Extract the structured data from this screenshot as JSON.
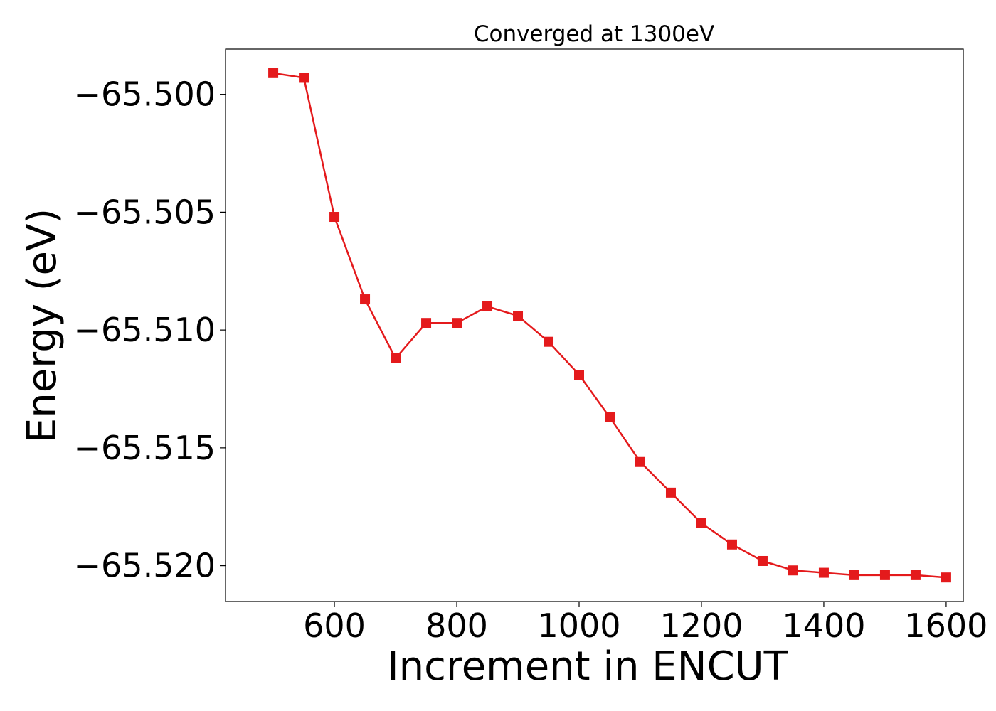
{
  "chart_data": {
    "type": "line",
    "title": "Converged at 1300eV",
    "xlabel": "Increment in ENCUT",
    "ylabel": "Energy (eV)",
    "xlim": [
      422,
      1628
    ],
    "ylim": [
      -65.52152,
      -65.49808
    ],
    "xticks": [
      600,
      800,
      1000,
      1200,
      1400,
      1600
    ],
    "xtick_labels": [
      "600",
      "800",
      "1000",
      "1200",
      "1400",
      "1600"
    ],
    "yticks": [
      -65.5,
      -65.505,
      -65.51,
      -65.515,
      -65.52
    ],
    "ytick_labels": [
      "−65.500",
      "−65.505",
      "−65.510",
      "−65.515",
      "−65.520"
    ],
    "grid": false,
    "marker": "square",
    "color": "#e41a1c",
    "series": [
      {
        "x": [
          500,
          550,
          600,
          650,
          700,
          750,
          800,
          850,
          900,
          950,
          1000,
          1050,
          1100,
          1150,
          1200,
          1250,
          1300,
          1350,
          1400,
          1450,
          1500,
          1550,
          1600
        ],
        "values": [
          -65.4991,
          -65.4993,
          -65.5052,
          -65.5087,
          -65.5112,
          -65.5097,
          -65.5097,
          -65.509,
          -65.5094,
          -65.5105,
          -65.5119,
          -65.5137,
          -65.5156,
          -65.5169,
          -65.5182,
          -65.5191,
          -65.5198,
          -65.5202,
          -65.5203,
          -65.5204,
          -65.5204,
          -65.5204,
          -65.5205
        ]
      }
    ]
  }
}
